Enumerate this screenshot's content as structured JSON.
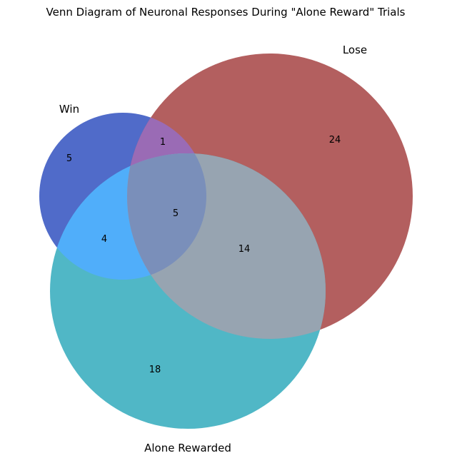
{
  "title": "Venn Diagram of Neuronal Responses During \"Alone Reward\" Trials",
  "sets": {
    "win": "Win",
    "lose": "Lose",
    "alone": "Alone Rewarded"
  },
  "regions": {
    "win_only": "5",
    "lose_only": "24",
    "alone_only": "18",
    "win_lose": "1",
    "win_alone": "4",
    "lose_alone": "14",
    "all_three": "5"
  },
  "colors": {
    "win_only": "#506bc9",
    "lose_only": "#b35f5f",
    "alone_only": "#50b7c6",
    "win_lose": "#9a6bb5",
    "win_alone": "#50aefa",
    "lose_alone": "#97a4b1",
    "all_three": "#7a8fba"
  }
}
